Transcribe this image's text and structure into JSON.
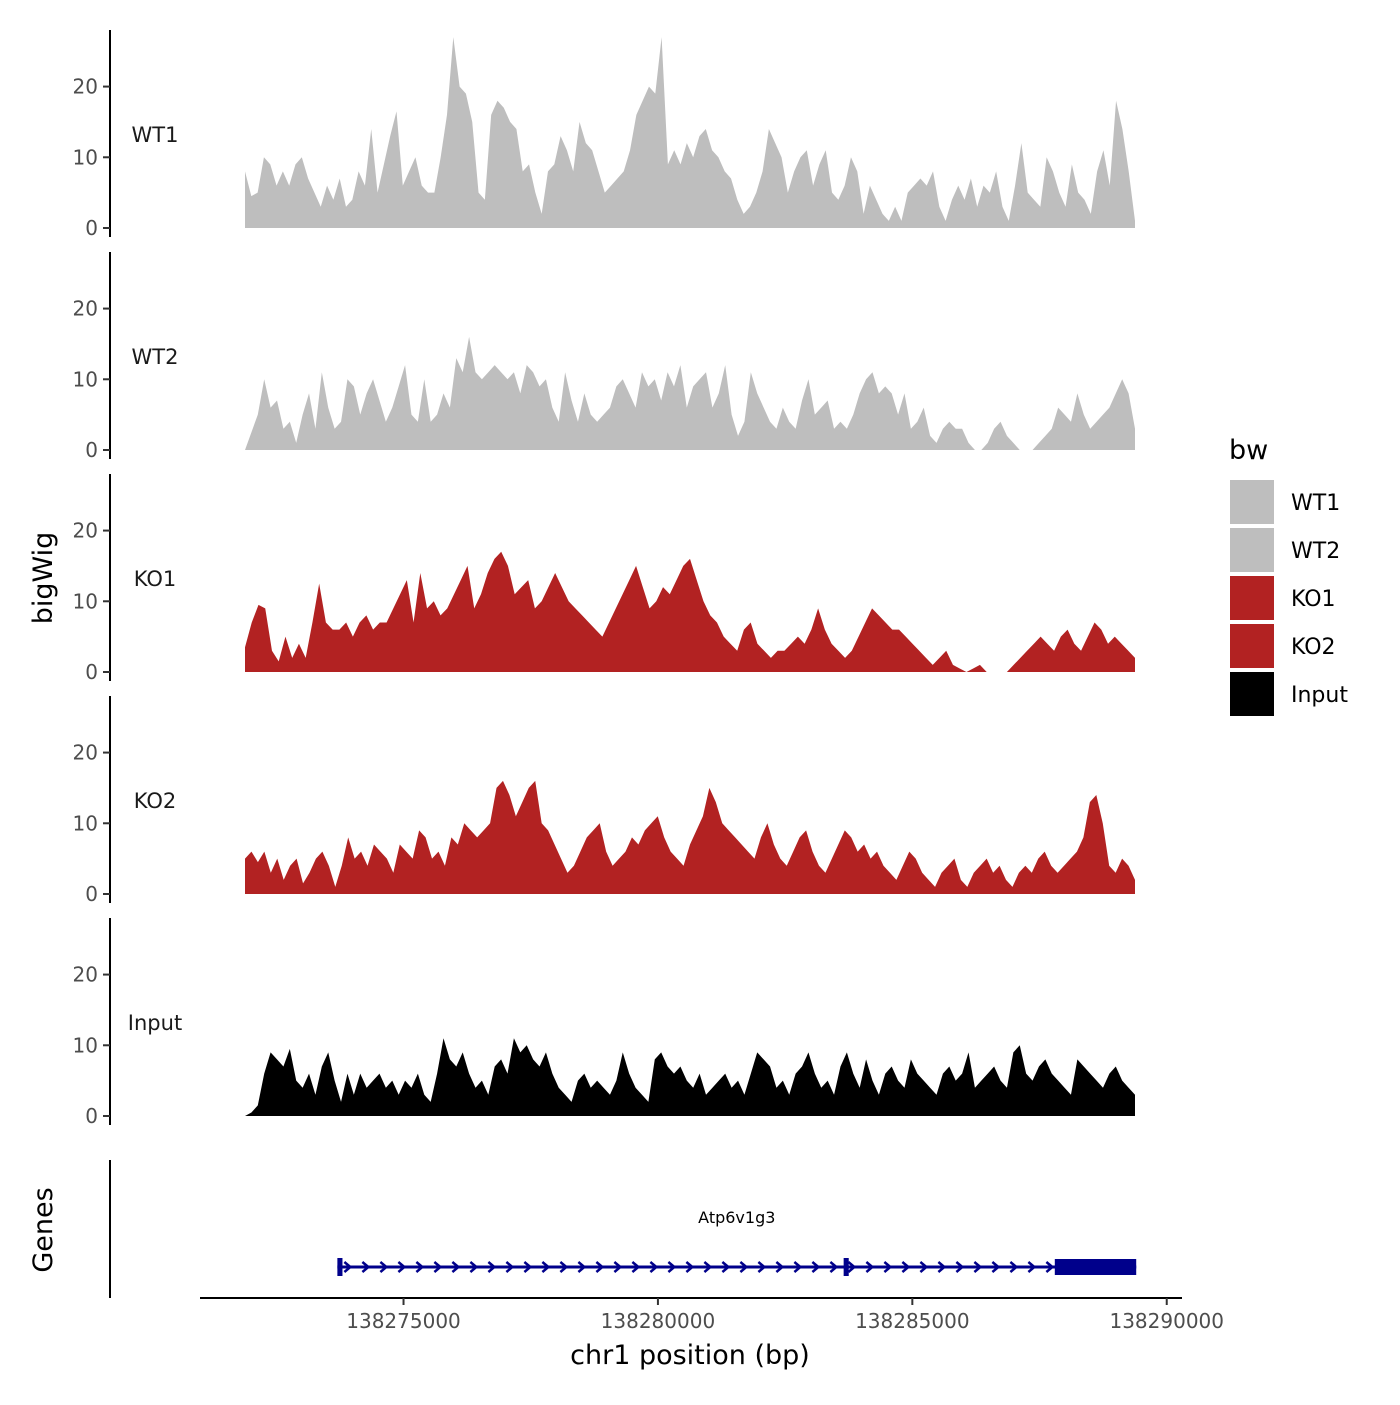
{
  "chart_data": {
    "type": "area",
    "genomic_region": {
      "chrom": "chr1",
      "start": 138271700,
      "end": 138289400
    },
    "y_axis_title": "bigWig",
    "x_axis_title": "chr1 position (bp)",
    "x_ticks": [
      138275000,
      138280000,
      138285000,
      138290000
    ],
    "x_tick_labels": [
      "138275000",
      "138280000",
      "138285000",
      "138290000"
    ],
    "ylim": [
      0,
      28
    ],
    "y_ticks": [
      0,
      10,
      20
    ],
    "y_tick_labels": [
      "0",
      "10",
      "20"
    ],
    "legend": {
      "title": "bw",
      "position": "right",
      "entries": [
        {
          "name": "WT1",
          "color": "#bebebe"
        },
        {
          "name": "WT2",
          "color": "#bebebe"
        },
        {
          "name": "KO1",
          "color": "#b22222"
        },
        {
          "name": "KO2",
          "color": "#b22222"
        },
        {
          "name": "Input",
          "color": "#000000"
        }
      ]
    },
    "tracks": [
      {
        "name": "WT1",
        "color": "#bebebe",
        "values": [
          8,
          4.5,
          5,
          10,
          9,
          6,
          8,
          6,
          9,
          10,
          7,
          5,
          3,
          6,
          4,
          7,
          3,
          4,
          8,
          6,
          14,
          5,
          9,
          13,
          16.5,
          6,
          8,
          10,
          6,
          5,
          5,
          10,
          16,
          27,
          20,
          19,
          15,
          5,
          4,
          16,
          18,
          17,
          15,
          14,
          8,
          9,
          5,
          2,
          8,
          9,
          13,
          11,
          8,
          15,
          12,
          11,
          8,
          5,
          6,
          7,
          8,
          11,
          16,
          18,
          20,
          19,
          27,
          9,
          11,
          9,
          12,
          10,
          13,
          14,
          11,
          10,
          8,
          7,
          4,
          2,
          3,
          5,
          8,
          14,
          12,
          10,
          5,
          8,
          10,
          11,
          6,
          9,
          11,
          5,
          4,
          6,
          10,
          8,
          2,
          6,
          4,
          2,
          1,
          3,
          1,
          5,
          6,
          7,
          6,
          8,
          3,
          1,
          4,
          6,
          4,
          7,
          3,
          6,
          5,
          8,
          3,
          1,
          6,
          12,
          5,
          4,
          3,
          10,
          8,
          5,
          3,
          9,
          5,
          4,
          2,
          8,
          11,
          6,
          18,
          14,
          8,
          1
        ]
      },
      {
        "name": "WT2",
        "color": "#bebebe",
        "values": [
          0,
          2.5,
          5,
          10,
          6,
          7,
          3,
          4,
          1,
          5,
          8,
          3,
          11,
          6,
          3,
          4,
          10,
          9,
          5,
          8,
          10,
          7,
          4,
          6,
          9,
          12,
          5,
          4,
          10,
          4,
          5,
          8,
          6,
          13,
          11,
          16,
          11,
          10,
          11,
          12,
          11,
          10,
          11,
          8,
          12,
          11,
          9,
          10,
          6,
          4,
          11,
          7,
          4,
          8,
          5,
          4,
          5,
          6,
          9,
          10,
          8,
          6,
          11,
          9,
          10,
          7,
          11,
          9,
          12,
          6,
          9,
          10,
          11,
          6,
          8,
          12,
          5,
          2,
          4,
          11,
          8,
          6,
          4,
          3,
          6,
          4,
          3,
          7,
          10,
          5,
          6,
          7,
          3,
          4,
          3,
          5,
          8,
          10,
          11,
          8,
          9,
          8,
          5,
          8,
          3,
          4,
          6,
          2,
          1,
          3,
          4,
          3,
          3,
          1,
          0,
          0,
          1,
          3,
          4,
          2,
          1,
          0,
          0,
          0,
          1,
          2,
          3,
          6,
          5,
          4,
          8,
          5,
          3,
          4,
          5,
          6,
          8,
          10,
          8,
          3
        ]
      },
      {
        "name": "KO1",
        "color": "#b22222",
        "values": [
          3.5,
          7,
          9.5,
          9,
          3,
          1.5,
          5,
          2,
          4,
          2,
          7,
          12.5,
          7,
          6,
          6,
          7,
          5,
          7,
          8,
          6,
          7,
          7,
          9,
          11,
          13,
          7,
          14,
          9,
          10,
          8,
          9,
          11,
          13,
          15,
          9,
          11,
          14,
          16,
          17,
          15,
          11,
          12,
          13,
          9,
          10,
          12,
          14,
          12,
          10,
          9,
          8,
          7,
          6,
          5,
          7,
          9,
          11,
          13,
          15,
          12,
          9,
          10,
          12,
          11,
          13,
          15,
          16,
          13,
          10,
          8,
          7,
          5,
          4,
          3,
          6,
          7,
          4,
          3,
          2,
          3,
          3,
          4,
          5,
          4,
          6,
          9,
          6,
          4,
          3,
          2,
          3,
          5,
          7,
          9,
          8,
          7,
          6,
          6,
          5,
          4,
          3,
          2,
          1,
          2,
          3,
          1,
          0.5,
          0,
          0.5,
          1,
          0,
          0,
          0,
          0,
          1,
          2,
          3,
          4,
          5,
          4,
          3,
          5,
          6,
          4,
          3,
          5,
          7,
          6,
          4,
          5,
          4,
          3,
          2
        ]
      },
      {
        "name": "KO2",
        "color": "#b22222",
        "values": [
          5,
          6,
          4.5,
          6,
          3,
          5,
          2,
          4,
          5,
          1.5,
          3,
          5,
          6,
          4,
          1,
          4,
          8,
          5,
          6,
          4,
          7,
          6,
          5,
          3,
          7,
          6,
          5,
          9,
          8,
          5,
          6,
          4,
          8,
          7,
          10,
          9,
          8,
          9,
          10,
          15,
          16,
          14,
          11,
          13,
          15,
          16,
          10,
          9,
          7,
          5,
          3,
          4,
          6,
          8,
          9,
          10,
          6,
          4,
          5,
          6,
          8,
          7,
          9,
          10,
          11,
          8,
          6,
          5,
          4,
          7,
          9,
          11,
          15,
          13,
          10,
          9,
          8,
          7,
          6,
          5,
          8,
          10,
          7,
          5,
          4,
          6,
          8,
          9,
          6,
          4,
          3,
          5,
          7,
          9,
          8,
          6,
          7,
          5,
          6,
          4,
          3,
          2,
          4,
          6,
          5,
          3,
          2,
          1,
          3,
          4,
          5,
          2,
          1,
          3,
          4,
          5,
          3,
          4,
          2,
          1,
          3,
          4,
          3,
          5,
          6,
          4,
          3,
          4,
          5,
          6,
          8,
          13,
          14,
          10,
          4,
          3,
          5,
          4,
          2
        ]
      },
      {
        "name": "Input",
        "color": "#000000",
        "values": [
          0,
          0.5,
          1.5,
          6,
          9,
          8,
          7,
          9.5,
          5,
          4,
          6,
          3,
          7,
          9,
          5,
          2,
          6,
          3,
          6,
          4,
          5,
          6,
          4,
          5,
          3,
          5,
          4,
          6,
          3,
          2,
          6,
          11,
          8,
          7,
          9,
          6,
          4,
          5,
          3,
          7,
          8,
          6,
          11,
          9,
          10,
          8,
          7,
          9,
          6,
          4,
          3,
          2,
          5,
          6,
          4,
          5,
          4,
          3,
          5,
          9,
          6,
          4,
          3,
          2,
          8,
          9,
          7,
          6,
          7,
          5,
          4,
          6,
          3,
          4,
          5,
          6,
          4,
          5,
          3,
          6,
          9,
          8,
          7,
          4,
          5,
          3,
          6,
          7,
          9,
          6,
          4,
          5,
          3,
          7,
          9,
          6,
          4,
          8,
          5,
          3,
          6,
          7,
          5,
          4,
          8,
          6,
          5,
          4,
          3,
          6,
          7,
          5,
          6,
          9,
          4,
          5,
          6,
          7,
          5,
          4,
          9,
          10,
          6,
          5,
          7,
          8,
          6,
          5,
          4,
          3,
          8,
          7,
          6,
          5,
          4,
          6,
          7,
          5,
          4,
          3
        ]
      }
    ],
    "genes_track": {
      "title": "Genes",
      "genes": [
        {
          "name": "Atp6v1g3",
          "strand": "+",
          "start": 138273700,
          "end": 138289400,
          "exons": [
            [
              138273700,
              138273800
            ],
            [
              138283650,
              138283750
            ],
            [
              138287800,
              138289400
            ]
          ]
        }
      ]
    }
  }
}
